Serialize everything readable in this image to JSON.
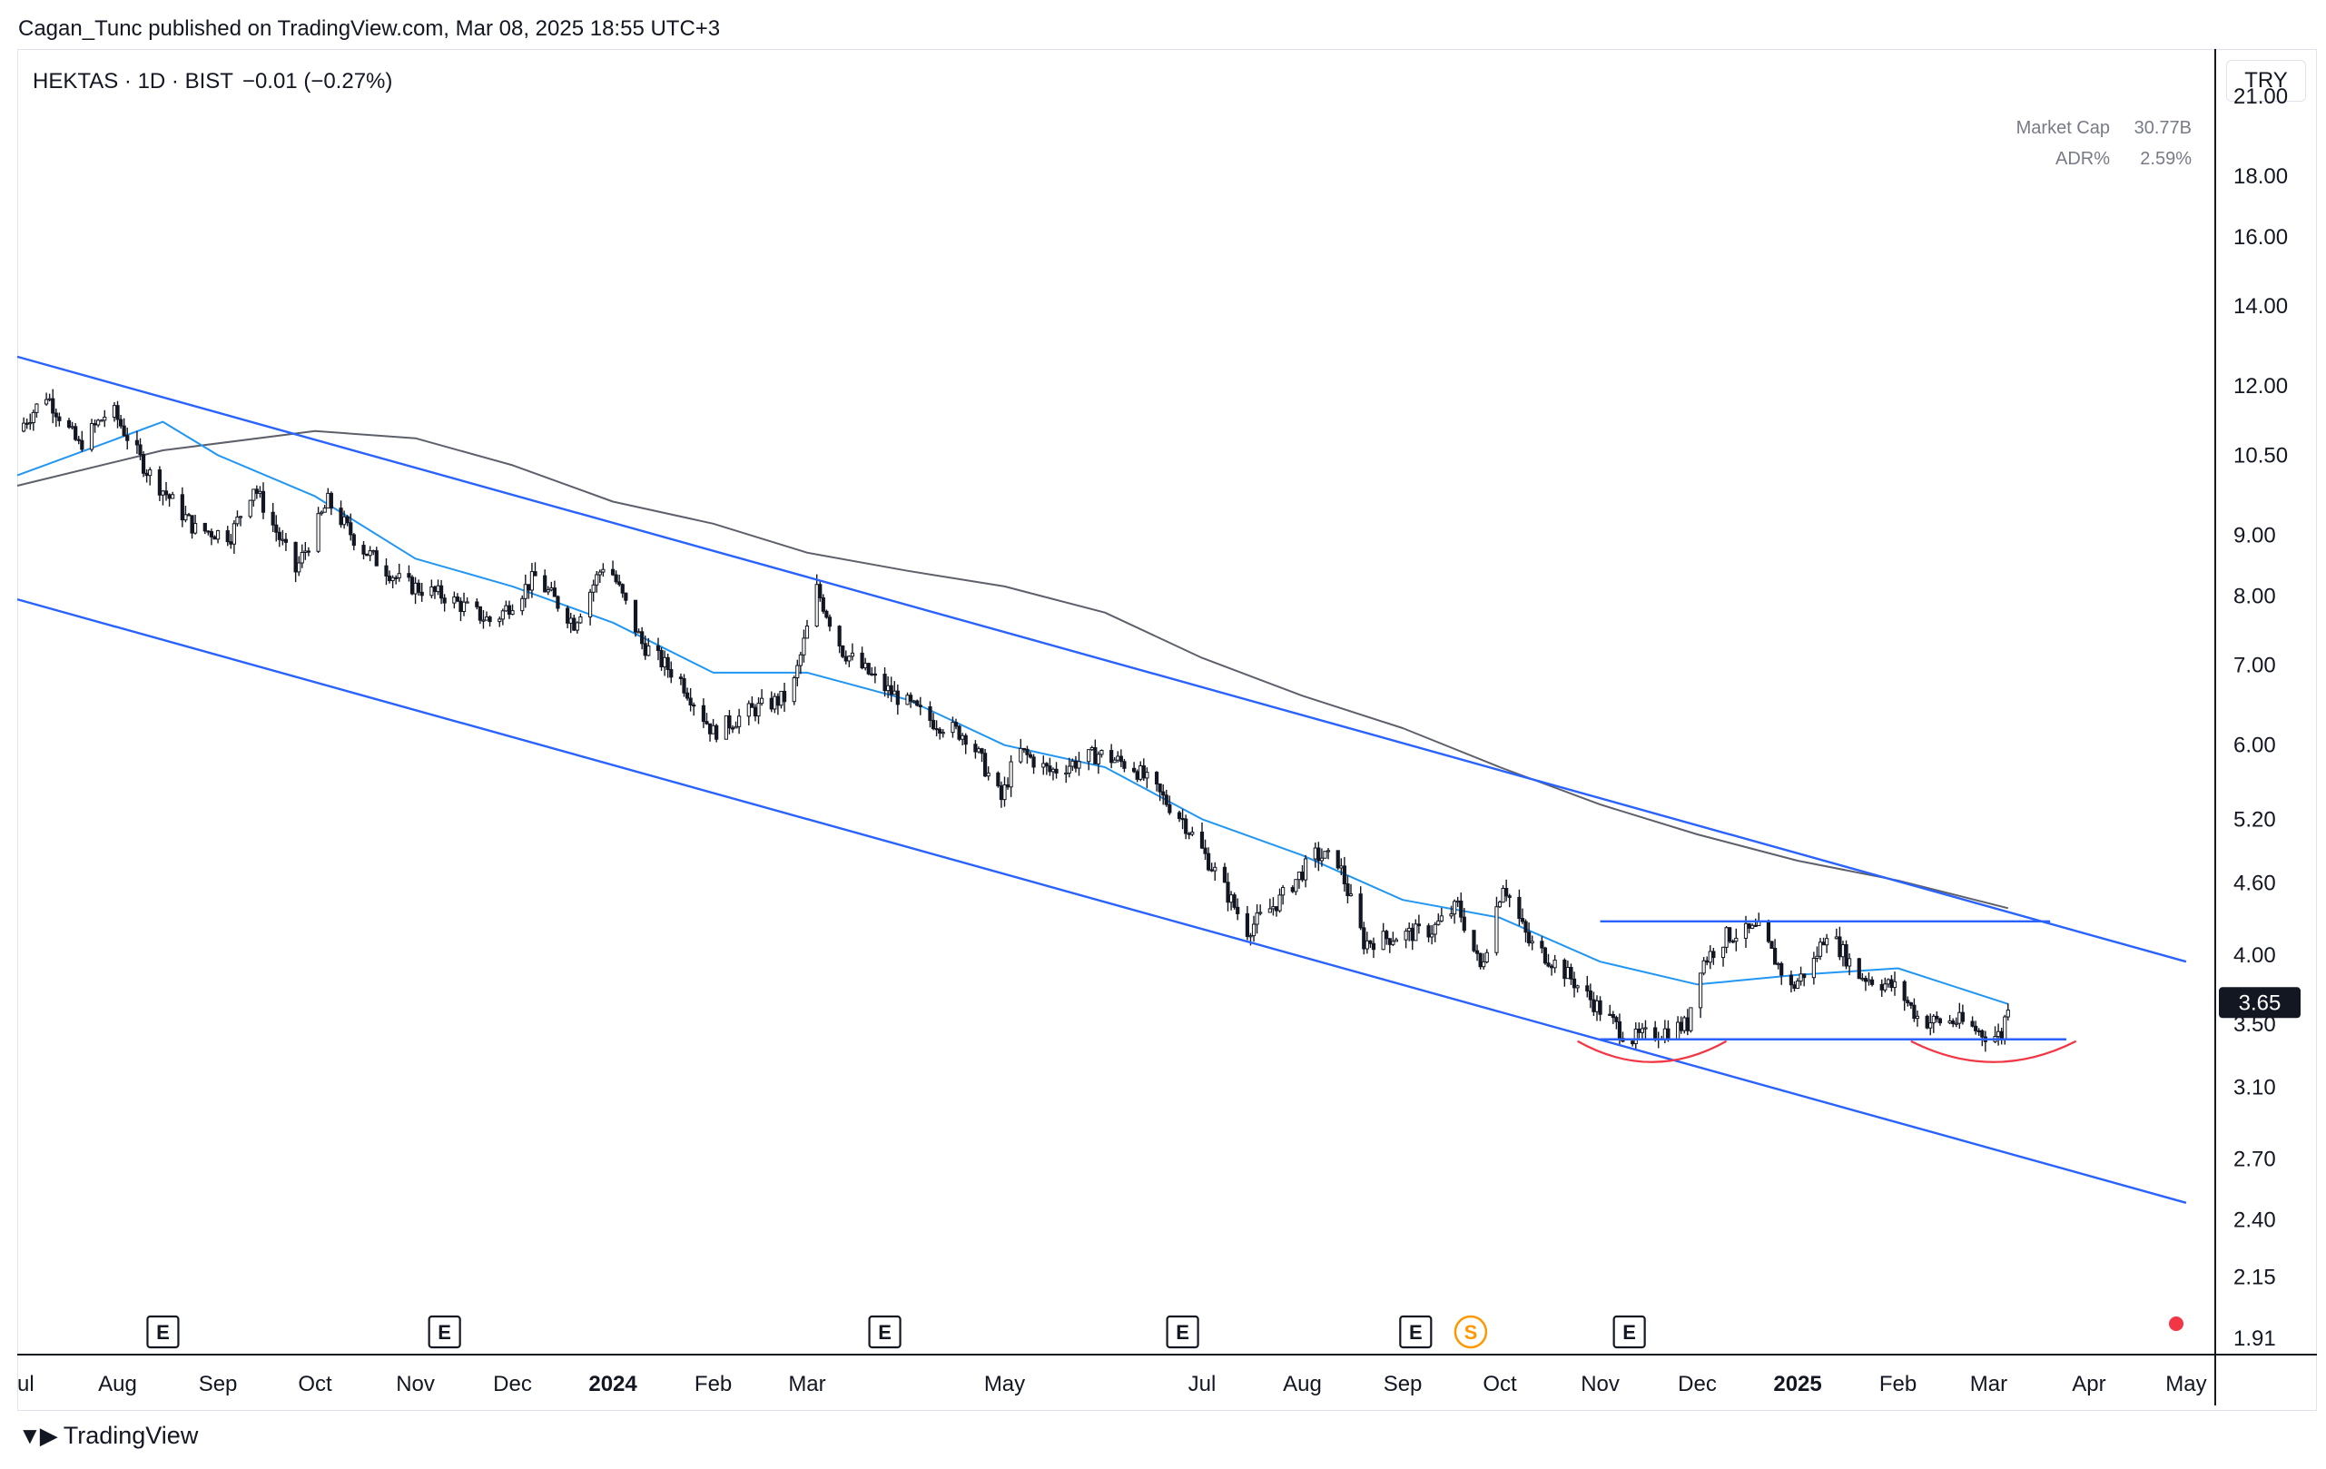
{
  "header": {
    "publisher_line": "Cagan_Tunc published on TradingView.com, Mar 08, 2025 18:55 UTC+3",
    "symbol_line": "HEKTAS · 1D · BIST",
    "change": "−0.01 (−0.27%)"
  },
  "stats": [
    {
      "label": "Market Cap",
      "value": "30.77B"
    },
    {
      "label": "ADR%",
      "value": "2.59%"
    }
  ],
  "currency": "TRY",
  "brand": {
    "name": "TradingView"
  },
  "colors": {
    "candle": "#131722",
    "ma_fast": "#2196f3",
    "ma_slow": "#5d606b",
    "trendline": "#2962ff",
    "arc": "#f23645",
    "price_tag_bg": "#131722",
    "event_dot": "#f23645",
    "split_badge": "#ff9800"
  },
  "chart_data": {
    "type": "candlestick",
    "symbol": "HEKTAS",
    "interval": "1D",
    "exchange": "BIST",
    "y_scale": "log",
    "ylim": [
      1.85,
      23.0
    ],
    "xlim": [
      "2023-07-01",
      "2025-05-10"
    ],
    "y_ticks": [
      "21.00",
      "18.00",
      "16.00",
      "14.00",
      "12.00",
      "10.50",
      "9.00",
      "8.00",
      "7.00",
      "6.00",
      "5.20",
      "4.60",
      "4.00",
      "3.50",
      "3.10",
      "2.70",
      "2.40",
      "2.15",
      "1.91"
    ],
    "x_ticks": [
      {
        "label": "ul",
        "date": "2023-07-01"
      },
      {
        "label": "Aug",
        "date": "2023-08-01"
      },
      {
        "label": "Sep",
        "date": "2023-09-01"
      },
      {
        "label": "Oct",
        "date": "2023-10-01"
      },
      {
        "label": "Nov",
        "date": "2023-11-01"
      },
      {
        "label": "Dec",
        "date": "2023-12-01"
      },
      {
        "label": "2024",
        "date": "2024-01-01",
        "bold": true
      },
      {
        "label": "Feb",
        "date": "2024-02-01"
      },
      {
        "label": "Mar",
        "date": "2024-03-01"
      },
      {
        "label": "May",
        "date": "2024-05-01"
      },
      {
        "label": "Jul",
        "date": "2024-07-01"
      },
      {
        "label": "Aug",
        "date": "2024-08-01"
      },
      {
        "label": "Sep",
        "date": "2024-09-01"
      },
      {
        "label": "Oct",
        "date": "2024-10-01"
      },
      {
        "label": "Nov",
        "date": "2024-11-01"
      },
      {
        "label": "Dec",
        "date": "2024-12-01"
      },
      {
        "label": "2025",
        "date": "2025-01-01",
        "bold": true
      },
      {
        "label": "Feb",
        "date": "2025-02-01"
      },
      {
        "label": "Mar",
        "date": "2025-03-01"
      },
      {
        "label": "Apr",
        "date": "2025-04-01"
      },
      {
        "label": "May",
        "date": "2025-05-01"
      }
    ],
    "price_path": [
      [
        "2023-07-01",
        11.0
      ],
      [
        "2023-07-10",
        11.8
      ],
      [
        "2023-07-20",
        10.7
      ],
      [
        "2023-07-30",
        11.5
      ],
      [
        "2023-08-10",
        10.2
      ],
      [
        "2023-08-25",
        9.1
      ],
      [
        "2023-09-05",
        9.0
      ],
      [
        "2023-09-12",
        9.9
      ],
      [
        "2023-09-25",
        8.4
      ],
      [
        "2023-10-05",
        9.6
      ],
      [
        "2023-10-15",
        8.8
      ],
      [
        "2023-10-28",
        8.2
      ],
      [
        "2023-11-10",
        8.0
      ],
      [
        "2023-11-25",
        7.6
      ],
      [
        "2023-12-08",
        8.3
      ],
      [
        "2023-12-20",
        7.6
      ],
      [
        "2023-12-30",
        8.6
      ],
      [
        "2024-01-10",
        7.3
      ],
      [
        "2024-01-22",
        6.8
      ],
      [
        "2024-02-01",
        6.15
      ],
      [
        "2024-02-12",
        6.4
      ],
      [
        "2024-02-25",
        6.6
      ],
      [
        "2024-03-04",
        8.1
      ],
      [
        "2024-03-12",
        7.2
      ],
      [
        "2024-03-25",
        6.7
      ],
      [
        "2024-04-08",
        6.3
      ],
      [
        "2024-04-20",
        6.1
      ],
      [
        "2024-04-30",
        5.4
      ],
      [
        "2024-05-05",
        5.95
      ],
      [
        "2024-05-15",
        5.7
      ],
      [
        "2024-05-30",
        5.9
      ],
      [
        "2024-06-10",
        5.75
      ],
      [
        "2024-06-25",
        5.2
      ],
      [
        "2024-07-05",
        4.7
      ],
      [
        "2024-07-15",
        4.2
      ],
      [
        "2024-07-25",
        4.45
      ],
      [
        "2024-08-05",
        4.85
      ],
      [
        "2024-08-12",
        4.8
      ],
      [
        "2024-08-20",
        4.1
      ],
      [
        "2024-08-30",
        4.15
      ],
      [
        "2024-09-10",
        4.2
      ],
      [
        "2024-09-18",
        4.4
      ],
      [
        "2024-09-25",
        3.9
      ],
      [
        "2024-10-02",
        4.6
      ],
      [
        "2024-10-10",
        4.1
      ],
      [
        "2024-10-20",
        3.9
      ],
      [
        "2024-11-01",
        3.6
      ],
      [
        "2024-11-10",
        3.4
      ],
      [
        "2024-11-20",
        3.45
      ],
      [
        "2024-11-28",
        3.5
      ],
      [
        "2024-12-01",
        3.9
      ],
      [
        "2024-12-10",
        4.15
      ],
      [
        "2024-12-20",
        4.2
      ],
      [
        "2024-12-30",
        3.75
      ],
      [
        "2025-01-06",
        3.95
      ],
      [
        "2025-01-10",
        4.2
      ],
      [
        "2025-01-20",
        3.85
      ],
      [
        "2025-02-01",
        3.75
      ],
      [
        "2025-02-08",
        3.52
      ],
      [
        "2025-02-20",
        3.52
      ],
      [
        "2025-03-01",
        3.42
      ],
      [
        "2025-03-05",
        3.43
      ],
      [
        "2025-03-07",
        3.65
      ]
    ],
    "ma_fast_path": [
      [
        "2023-07-01",
        10.1
      ],
      [
        "2023-08-15",
        11.2
      ],
      [
        "2023-09-01",
        10.5
      ],
      [
        "2023-10-01",
        9.7
      ],
      [
        "2023-11-01",
        8.6
      ],
      [
        "2023-12-01",
        8.15
      ],
      [
        "2024-01-01",
        7.6
      ],
      [
        "2024-02-01",
        6.9
      ],
      [
        "2024-03-01",
        6.9
      ],
      [
        "2024-04-01",
        6.55
      ],
      [
        "2024-05-01",
        6.0
      ],
      [
        "2024-06-01",
        5.75
      ],
      [
        "2024-07-01",
        5.2
      ],
      [
        "2024-08-01",
        4.85
      ],
      [
        "2024-09-01",
        4.45
      ],
      [
        "2024-10-01",
        4.3
      ],
      [
        "2024-11-01",
        3.95
      ],
      [
        "2024-12-01",
        3.78
      ],
      [
        "2025-01-01",
        3.85
      ],
      [
        "2025-02-01",
        3.9
      ],
      [
        "2025-03-07",
        3.64
      ]
    ],
    "ma_slow_path": [
      [
        "2023-07-01",
        9.9
      ],
      [
        "2023-08-15",
        10.6
      ],
      [
        "2023-10-01",
        11.0
      ],
      [
        "2023-11-01",
        10.85
      ],
      [
        "2023-12-01",
        10.3
      ],
      [
        "2024-01-01",
        9.6
      ],
      [
        "2024-02-01",
        9.2
      ],
      [
        "2024-03-01",
        8.7
      ],
      [
        "2024-04-01",
        8.4
      ],
      [
        "2024-05-01",
        8.15
      ],
      [
        "2024-06-01",
        7.75
      ],
      [
        "2024-07-01",
        7.1
      ],
      [
        "2024-08-01",
        6.6
      ],
      [
        "2024-09-01",
        6.2
      ],
      [
        "2024-10-01",
        5.75
      ],
      [
        "2024-11-01",
        5.35
      ],
      [
        "2024-12-01",
        5.05
      ],
      [
        "2025-01-01",
        4.8
      ],
      [
        "2025-02-01",
        4.62
      ],
      [
        "2025-03-07",
        4.38
      ]
    ],
    "channel_upper": [
      [
        "2023-07-01",
        12.7
      ],
      [
        "2025-05-01",
        3.95
      ]
    ],
    "channel_lower": [
      [
        "2023-07-01",
        7.95
      ],
      [
        "2025-05-01",
        2.48
      ]
    ],
    "resistance": {
      "from": "2024-11-01",
      "to": "2025-03-20",
      "price": 4.27
    },
    "support": {
      "from": "2024-11-01",
      "to": "2025-03-25",
      "price": 3.4
    },
    "bottom_arcs": [
      {
        "from": "2024-10-25",
        "to": "2024-12-10",
        "price": 3.4
      },
      {
        "from": "2025-02-05",
        "to": "2025-03-28",
        "price": 3.4
      }
    ],
    "last_price": "3.65",
    "events": [
      {
        "type": "E",
        "date": "2023-08-15"
      },
      {
        "type": "E",
        "date": "2023-11-10"
      },
      {
        "type": "E",
        "date": "2024-03-25"
      },
      {
        "type": "E",
        "date": "2024-06-25"
      },
      {
        "type": "E",
        "date": "2024-09-05"
      },
      {
        "type": "S",
        "date": "2024-09-22"
      },
      {
        "type": "E",
        "date": "2024-11-10"
      }
    ]
  }
}
